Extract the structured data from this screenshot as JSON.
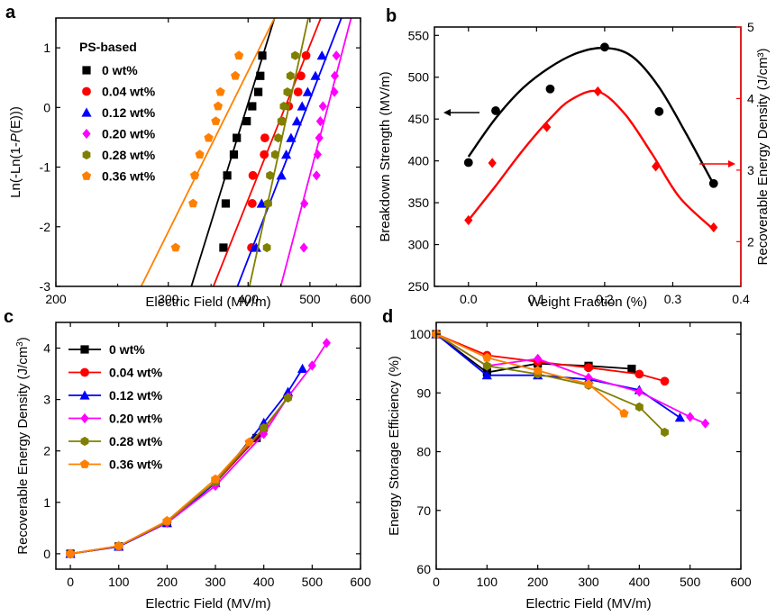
{
  "colors": {
    "0 wt%": "#000000",
    "0.04 wt%": "#ff0000",
    "0.12 wt%": "#0000ff",
    "0.20 wt%": "#ff00ff",
    "0.28 wt%": "#808000",
    "0.36 wt%": "#ff8000"
  },
  "chart_data": [
    {
      "panel": "a",
      "type": "scatter",
      "xlabel": "Electric Field (MV/m)",
      "ylabel": "Ln(-Ln(1-P(E)))",
      "xscale": "log",
      "xlim": [
        200,
        600
      ],
      "ylim": [
        -3,
        1.5
      ],
      "xticks": [
        200,
        300,
        400,
        500,
        600
      ],
      "yticks": [
        -3,
        -2,
        -1,
        0,
        1
      ],
      "legend_title": "PS-based",
      "legend_position": "top-left",
      "series": [
        {
          "name": "0 wt%",
          "marker": "square",
          "x": [
            366,
            369,
            371,
            380,
            384,
            398,
            406,
            415,
            418,
            421
          ],
          "y": [
            -2.35,
            -1.61,
            -1.14,
            -0.79,
            -0.51,
            -0.23,
            0.02,
            0.26,
            0.53,
            0.87
          ],
          "fit": [
            [
              326,
              -3
            ],
            [
              440,
              1.5
            ]
          ]
        },
        {
          "name": "0.04 wt%",
          "marker": "circle",
          "x": [
            405,
            406,
            407,
            424,
            425,
            452,
            463,
            479,
            484,
            493
          ],
          "y": [
            -2.35,
            -1.61,
            -1.14,
            -0.79,
            -0.51,
            -0.23,
            0.02,
            0.26,
            0.53,
            0.87
          ],
          "fit": [
            [
              353,
              -3
            ],
            [
              520,
              1.5
            ]
          ]
        },
        {
          "name": "0.12 wt%",
          "marker": "triangle",
          "x": [
            412,
            420,
            451,
            459,
            467,
            477,
            486,
            496,
            510,
            522
          ],
          "y": [
            -2.35,
            -1.61,
            -1.14,
            -0.79,
            -0.51,
            -0.23,
            0.02,
            0.26,
            0.53,
            0.87
          ],
          "fit": [
            [
              385,
              -3
            ],
            [
              560,
              1.5
            ]
          ]
        },
        {
          "name": "0.20 wt%",
          "marker": "diamond",
          "x": [
            489,
            490,
            512,
            514,
            517,
            519,
            524,
            546,
            547,
            550
          ],
          "y": [
            -2.35,
            -1.61,
            -1.14,
            -0.79,
            -0.51,
            -0.23,
            0.02,
            0.26,
            0.53,
            0.87
          ],
          "fit": [
            [
              450,
              -3
            ],
            [
              580,
              1.5
            ]
          ]
        },
        {
          "name": "0.28 wt%",
          "marker": "hexagon",
          "x": [
            428,
            430,
            433,
            441,
            446,
            451,
            455,
            461,
            466,
            474
          ],
          "y": [
            -2.35,
            -1.61,
            -1.14,
            -0.79,
            -0.51,
            -0.23,
            0.02,
            0.26,
            0.53,
            0.87
          ],
          "fit": [
            [
              402,
              -3
            ],
            [
              497,
              1.5
            ]
          ]
        },
        {
          "name": "0.36 wt%",
          "marker": "pentagon",
          "x": [
            308,
            328,
            330,
            336,
            347,
            356,
            359,
            362,
            382,
            387
          ],
          "y": [
            -2.35,
            -1.61,
            -1.14,
            -0.79,
            -0.51,
            -0.23,
            0.02,
            0.26,
            0.53,
            0.87
          ],
          "fit": [
            [
              272,
              -3
            ],
            [
              440,
              1.5
            ]
          ]
        }
      ]
    },
    {
      "panel": "b",
      "type": "scatter",
      "xlabel": "Weight Fraction (%)",
      "ylabel": "Breakdown Strength (MV/m)",
      "y2label": "Recoverable Energy Density (J/cm³)",
      "xlim": [
        -0.05,
        0.4
      ],
      "ylim": [
        250,
        560
      ],
      "y2lim": [
        1.375,
        5
      ],
      "xticks": [
        0.0,
        0.1,
        0.2,
        0.3,
        0.4
      ],
      "yticks": [
        250,
        300,
        350,
        400,
        450,
        500,
        550
      ],
      "y2ticks": [
        2,
        3,
        4,
        5
      ],
      "series": [
        {
          "name": "Breakdown Strength",
          "axis": "left",
          "color": "#000000",
          "marker": "circle",
          "x": [
            0,
            0.04,
            0.12,
            0.2,
            0.28,
            0.36
          ],
          "y": [
            398,
            460,
            486,
            536,
            459,
            373
          ],
          "curve_x": [
            0,
            0.04,
            0.08,
            0.12,
            0.16,
            0.2,
            0.24,
            0.28,
            0.32,
            0.36
          ],
          "curve_y": [
            405,
            451,
            487,
            512,
            529,
            535,
            525,
            488,
            432,
            372
          ]
        },
        {
          "name": "Recoverable Energy Density",
          "axis": "right",
          "color": "#ff0000",
          "marker": "diamond",
          "x": [
            0,
            0.035,
            0.115,
            0.19,
            0.275,
            0.36
          ],
          "y": [
            2.3,
            3.1,
            3.6,
            4.1,
            3.05,
            2.2
          ],
          "curve_x": [
            0,
            0.04,
            0.08,
            0.12,
            0.15,
            0.19,
            0.23,
            0.27,
            0.31,
            0.36
          ],
          "curve_y": [
            2.3,
            2.78,
            3.28,
            3.72,
            3.98,
            4.1,
            3.78,
            3.22,
            2.62,
            2.17
          ]
        }
      ],
      "arrows": [
        {
          "direction": "left",
          "points_to": "left-axis"
        },
        {
          "direction": "right",
          "points_to": "right-axis"
        }
      ]
    },
    {
      "panel": "c",
      "type": "line",
      "xlabel": "Electric Field (MV/m)",
      "ylabel": "Recoverable Energy Density (J/cm³)",
      "xlim": [
        -30,
        600
      ],
      "ylim": [
        -0.3,
        4.5
      ],
      "xticks": [
        0,
        100,
        200,
        300,
        400,
        500,
        600
      ],
      "yticks": [
        0,
        1,
        2,
        3,
        4
      ],
      "legend_position": "top-left",
      "series": [
        {
          "name": "0 wt%",
          "marker": "square",
          "x": [
            0,
            100,
            200,
            300,
            385
          ],
          "y": [
            0,
            0.14,
            0.6,
            1.38,
            2.25
          ]
        },
        {
          "name": "0.04 wt%",
          "marker": "circle",
          "x": [
            0,
            100,
            200,
            300,
            400,
            450
          ],
          "y": [
            0,
            0.14,
            0.62,
            1.38,
            2.42,
            3.05
          ]
        },
        {
          "name": "0.12 wt%",
          "marker": "triangle",
          "x": [
            0,
            100,
            200,
            300,
            400,
            450,
            480
          ],
          "y": [
            0,
            0.14,
            0.6,
            1.38,
            2.55,
            3.15,
            3.6
          ]
        },
        {
          "name": "0.20 wt%",
          "marker": "diamond",
          "x": [
            0,
            100,
            200,
            300,
            400,
            450,
            500,
            530
          ],
          "y": [
            0,
            0.15,
            0.6,
            1.32,
            2.33,
            3.05,
            3.66,
            4.1
          ]
        },
        {
          "name": "0.28 wt%",
          "marker": "hexagon",
          "x": [
            0,
            100,
            200,
            300,
            400,
            450
          ],
          "y": [
            0,
            0.15,
            0.62,
            1.4,
            2.45,
            3.03
          ]
        },
        {
          "name": "0.36 wt%",
          "marker": "pentagon",
          "x": [
            0,
            100,
            200,
            300,
            370
          ],
          "y": [
            0,
            0.15,
            0.64,
            1.45,
            2.17
          ]
        }
      ]
    },
    {
      "panel": "d",
      "type": "line",
      "xlabel": "Electric Field (MV/m)",
      "ylabel": "Energy Storage Efficiency (%)",
      "xlim": [
        0,
        600
      ],
      "ylim": [
        60,
        102
      ],
      "xticks": [
        0,
        100,
        200,
        300,
        400,
        500,
        600
      ],
      "yticks": [
        60,
        70,
        80,
        90,
        100
      ],
      "series": [
        {
          "name": "0 wt%",
          "marker": "square",
          "x": [
            0,
            100,
            200,
            300,
            385
          ],
          "y": [
            100,
            93.5,
            95,
            94.6,
            94.1
          ]
        },
        {
          "name": "0.04 wt%",
          "marker": "circle",
          "x": [
            0,
            100,
            200,
            300,
            400,
            450
          ],
          "y": [
            100,
            96.4,
            95.3,
            94.3,
            93.2,
            92
          ]
        },
        {
          "name": "0.12 wt%",
          "marker": "triangle",
          "x": [
            0,
            100,
            200,
            300,
            400,
            480
          ],
          "y": [
            100,
            93,
            93,
            92.3,
            90.5,
            85.8
          ]
        },
        {
          "name": "0.20 wt%",
          "marker": "diamond",
          "x": [
            0,
            100,
            200,
            300,
            400,
            500,
            530
          ],
          "y": [
            100,
            94.6,
            95.8,
            92.6,
            90.2,
            85.9,
            84.8
          ]
        },
        {
          "name": "0.28 wt%",
          "marker": "hexagon",
          "x": [
            0,
            100,
            200,
            300,
            400,
            450
          ],
          "y": [
            100,
            94.6,
            93.2,
            91.3,
            87.6,
            83.3
          ]
        },
        {
          "name": "0.36 wt%",
          "marker": "pentagon",
          "x": [
            0,
            100,
            200,
            300,
            370
          ],
          "y": [
            100,
            96,
            93.8,
            91.5,
            86.5
          ]
        }
      ]
    }
  ]
}
